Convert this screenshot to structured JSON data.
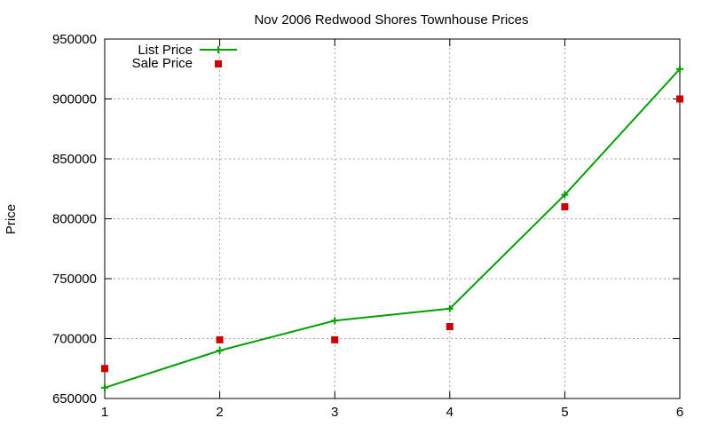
{
  "chart_data": {
    "type": "line",
    "title": "Nov 2006 Redwood Shores Townhouse Prices",
    "xlabel": "",
    "ylabel": "Price",
    "x": [
      1,
      2,
      3,
      4,
      5,
      6
    ],
    "xticks": [
      "1",
      "2",
      "3",
      "4",
      "5",
      "6"
    ],
    "xlim": [
      1,
      6
    ],
    "yticks": [
      "650000",
      "700000",
      "750000",
      "800000",
      "850000",
      "900000",
      "950000"
    ],
    "ylim": [
      650000,
      950000
    ],
    "grid": true,
    "legend_position": "top-left",
    "series": [
      {
        "name": "List Price",
        "style": "line-with-plus-markers",
        "color": "#00a000",
        "values": [
          659000,
          690000,
          715000,
          725000,
          820000,
          925000
        ]
      },
      {
        "name": "Sale Price",
        "style": "square-markers",
        "color": "#cc0000",
        "values": [
          675000,
          699000,
          699000,
          710000,
          810000,
          900000
        ]
      }
    ]
  }
}
